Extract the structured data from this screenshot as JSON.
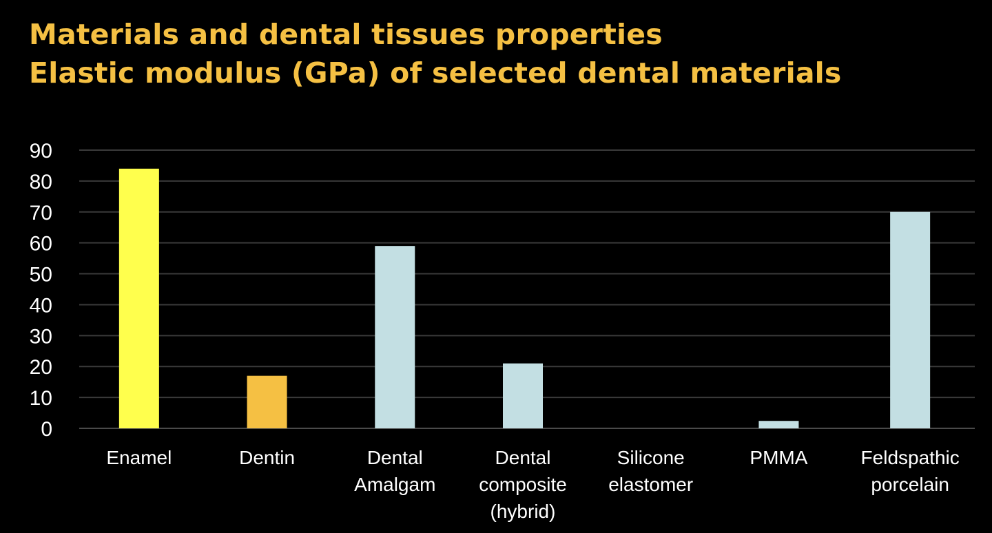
{
  "title": {
    "line1": "Materials and dental tissues properties",
    "line2": "Elastic modulus (GPa) of selected dental materials"
  },
  "colors": {
    "background": "#000000",
    "title": "#f5c043",
    "gridline": "#3a3a3a",
    "axis_text": "#ffffff"
  },
  "chart_data": {
    "type": "bar",
    "categories": [
      [
        "Enamel"
      ],
      [
        "Dentin"
      ],
      [
        "Dental",
        "Amalgam"
      ],
      [
        "Dental",
        "composite",
        "(hybrid)"
      ],
      [
        "Silicone",
        "elastomer"
      ],
      [
        "PMMA"
      ],
      [
        "Feldspathic",
        "porcelain"
      ]
    ],
    "values": [
      84,
      17,
      59,
      21,
      0,
      2.4,
      70
    ],
    "bar_colors": [
      "#ffff4d",
      "#f5c043",
      "#c3dfe3",
      "#c3dfe3",
      "#c3dfe3",
      "#c3dfe3",
      "#c3dfe3"
    ],
    "ylim": [
      0,
      90
    ],
    "yticks": [
      0,
      10,
      20,
      30,
      40,
      50,
      60,
      70,
      80,
      90
    ],
    "grid": true,
    "legend": "none",
    "xlabel": "",
    "ylabel": ""
  }
}
